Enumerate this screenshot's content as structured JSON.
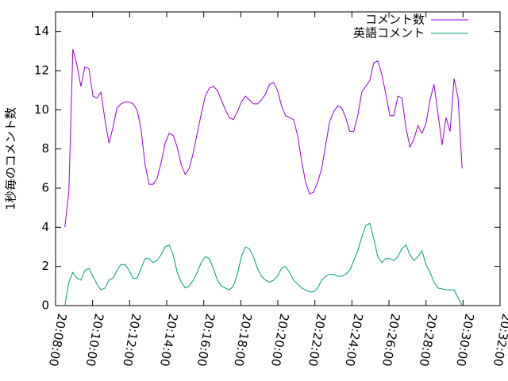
{
  "chart_data": {
    "type": "line",
    "ylabel": "1秒毎のコメント数",
    "x": [
      "20:08:30",
      "20:08:43",
      "20:08:56",
      "20:09:09",
      "20:09:22",
      "20:09:35",
      "20:09:48",
      "20:10:01",
      "20:10:14",
      "20:10:27",
      "20:10:40",
      "20:10:53",
      "20:11:06",
      "20:11:19",
      "20:11:32",
      "20:11:45",
      "20:11:58",
      "20:12:11",
      "20:12:24",
      "20:12:37",
      "20:12:50",
      "20:13:03",
      "20:13:16",
      "20:13:29",
      "20:13:42",
      "20:13:55",
      "20:14:08",
      "20:14:21",
      "20:14:34",
      "20:14:47",
      "20:15:00",
      "20:15:13",
      "20:15:26",
      "20:15:39",
      "20:15:52",
      "20:16:05",
      "20:16:18",
      "20:16:31",
      "20:16:44",
      "20:16:57",
      "20:17:10",
      "20:17:23",
      "20:17:36",
      "20:17:49",
      "20:18:02",
      "20:18:15",
      "20:18:28",
      "20:18:41",
      "20:18:54",
      "20:19:07",
      "20:19:20",
      "20:19:33",
      "20:19:46",
      "20:19:59",
      "20:20:12",
      "20:20:25",
      "20:20:38",
      "20:20:51",
      "20:21:04",
      "20:21:17",
      "20:21:30",
      "20:21:43",
      "20:21:56",
      "20:22:09",
      "20:22:22",
      "20:22:35",
      "20:22:48",
      "20:23:01",
      "20:23:14",
      "20:23:27",
      "20:23:40",
      "20:23:53",
      "20:24:06",
      "20:24:19",
      "20:24:32",
      "20:24:45",
      "20:24:58",
      "20:25:11",
      "20:25:24",
      "20:25:37",
      "20:25:50",
      "20:26:03",
      "20:26:16",
      "20:26:29",
      "20:26:42",
      "20:26:55",
      "20:27:08",
      "20:27:21",
      "20:27:34",
      "20:27:47",
      "20:28:00",
      "20:28:13",
      "20:28:26",
      "20:28:39",
      "20:28:52",
      "20:29:05",
      "20:29:18",
      "20:29:31",
      "20:29:44",
      "20:29:57"
    ],
    "series": [
      {
        "name": "コメント数",
        "color": "#9400d3",
        "values": [
          4.0,
          5.8,
          13.1,
          12.3,
          11.2,
          12.2,
          12.1,
          10.7,
          10.6,
          10.9,
          9.5,
          8.3,
          9.1,
          10.1,
          10.3,
          10.4,
          10.4,
          10.3,
          10.0,
          9.0,
          7.2,
          6.2,
          6.2,
          6.5,
          7.3,
          8.3,
          8.8,
          8.7,
          8.1,
          7.2,
          6.7,
          7.0,
          7.8,
          8.8,
          9.8,
          10.7,
          11.1,
          11.2,
          11.0,
          10.5,
          10.0,
          9.6,
          9.5,
          9.9,
          10.4,
          10.7,
          10.5,
          10.3,
          10.3,
          10.5,
          10.8,
          11.3,
          11.4,
          11.0,
          10.2,
          9.7,
          9.6,
          9.5,
          8.7,
          7.4,
          6.3,
          5.7,
          5.8,
          6.3,
          7.0,
          8.2,
          9.4,
          9.9,
          10.2,
          10.1,
          9.6,
          8.9,
          8.9,
          9.7,
          10.9,
          11.2,
          11.5,
          12.4,
          12.5,
          11.8,
          10.8,
          9.7,
          9.7,
          10.7,
          10.6,
          9.1,
          8.1,
          8.5,
          9.2,
          8.8,
          9.3,
          10.5,
          11.3,
          9.8,
          8.2,
          9.6,
          8.9,
          11.6,
          10.6,
          7.0
        ]
      },
      {
        "name": "英語コメント",
        "color": "#009e73",
        "values": [
          0,
          1.2,
          1.7,
          1.4,
          1.3,
          1.8,
          1.9,
          1.5,
          1.1,
          0.8,
          0.9,
          1.3,
          1.4,
          1.8,
          2.1,
          2.1,
          1.8,
          1.4,
          1.4,
          1.9,
          2.4,
          2.4,
          2.2,
          2.3,
          2.6,
          3.0,
          3.1,
          2.6,
          1.7,
          1.2,
          0.9,
          1.0,
          1.3,
          1.7,
          2.2,
          2.5,
          2.4,
          1.9,
          1.3,
          1.0,
          0.9,
          0.8,
          1.0,
          1.6,
          2.5,
          3.0,
          2.9,
          2.5,
          1.9,
          1.5,
          1.3,
          1.2,
          1.3,
          1.5,
          1.9,
          2.0,
          1.7,
          1.3,
          1.1,
          0.9,
          0.8,
          0.7,
          0.7,
          0.9,
          1.3,
          1.5,
          1.6,
          1.6,
          1.5,
          1.5,
          1.6,
          1.8,
          2.3,
          2.8,
          3.5,
          4.1,
          4.2,
          3.4,
          2.5,
          2.2,
          2.4,
          2.4,
          2.3,
          2.5,
          2.9,
          3.1,
          2.6,
          2.3,
          2.5,
          2.8,
          2.1,
          1.7,
          1.2,
          0.9,
          0.85,
          0.8,
          0.8,
          0.8,
          0.4,
          0
        ]
      }
    ],
    "xlim": [
      "20:08:00",
      "20:32:00"
    ],
    "xticks": [
      "20:08:00",
      "20:10:00",
      "20:12:00",
      "20:14:00",
      "20:16:00",
      "20:18:00",
      "20:20:00",
      "20:22:00",
      "20:24:00",
      "20:26:00",
      "20:28:00",
      "20:30:00",
      "20:32:00"
    ],
    "ylim": [
      0,
      15
    ],
    "yticks": [
      0,
      2,
      4,
      6,
      8,
      10,
      12,
      14
    ],
    "legend": "top-right",
    "grid": false
  }
}
